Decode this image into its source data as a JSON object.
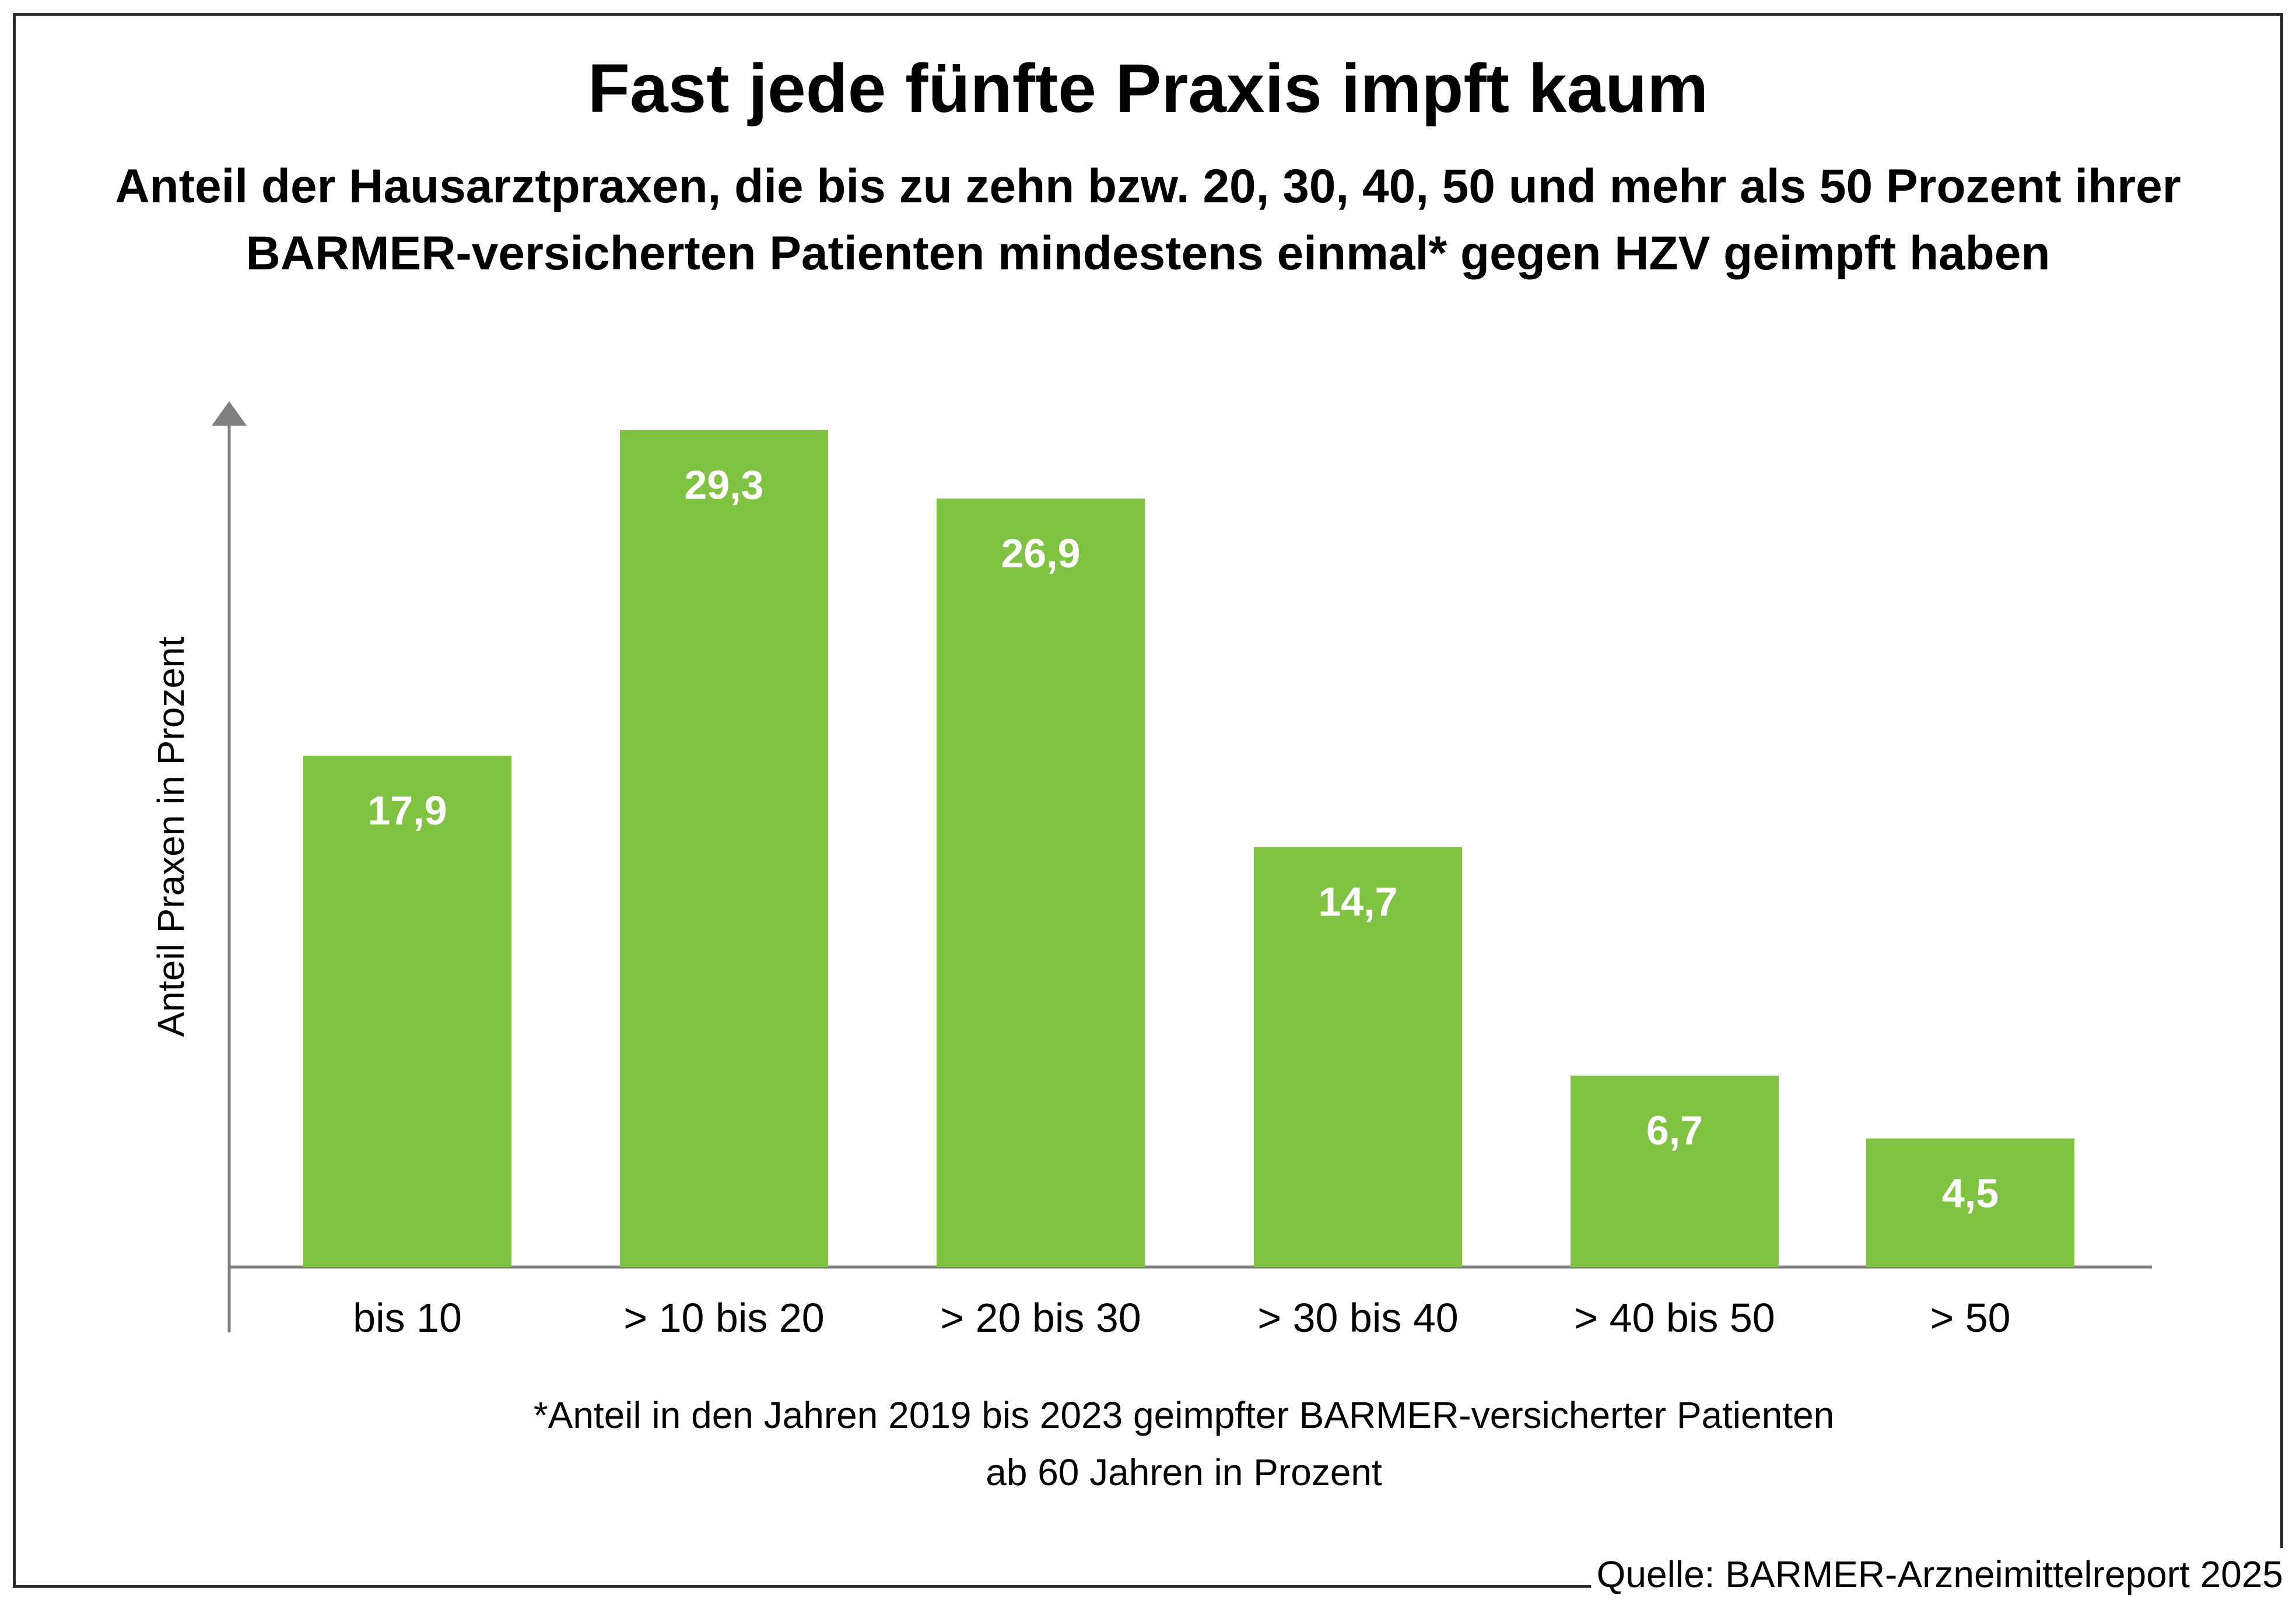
{
  "header": {
    "title": "Fast jede fünfte Praxis impft kaum",
    "subtitle_line1": "Anteil der Hausarztpraxen, die bis zu zehn bzw. 20, 30, 40, 50 und mehr als 50 Prozent ihrer",
    "subtitle_line2": "BARMER-versicherten Patienten mindestens einmal* gegen HZV geimpft haben"
  },
  "footer": {
    "footnote_line1": "*Anteil in den Jahren 2019 bis 2023 geimpfter BARMER-versicherter Patienten",
    "footnote_line2": "ab 60 Jahren in Prozent",
    "source": "Quelle: BARMER-Arzneimittelreport 2025"
  },
  "chart_data": {
    "type": "bar",
    "categories": [
      "bis 10",
      "> 10 bis 20",
      "> 20 bis 30",
      "> 30 bis 40",
      "> 40 bis 50",
      "> 50"
    ],
    "values": [
      17.9,
      29.3,
      26.9,
      14.7,
      6.7,
      4.5
    ],
    "value_labels": [
      "17,9",
      "29,3",
      "26,9",
      "14,7",
      "6,7",
      "4,5"
    ],
    "ylabel": "Anteil Praxen in Prozent",
    "xlabel": "",
    "ylim": [
      0,
      30
    ],
    "grid": false,
    "legend": "none",
    "bar_color": "#80c241",
    "value_label_color": "#ffffff",
    "axis_color": "#808080"
  }
}
